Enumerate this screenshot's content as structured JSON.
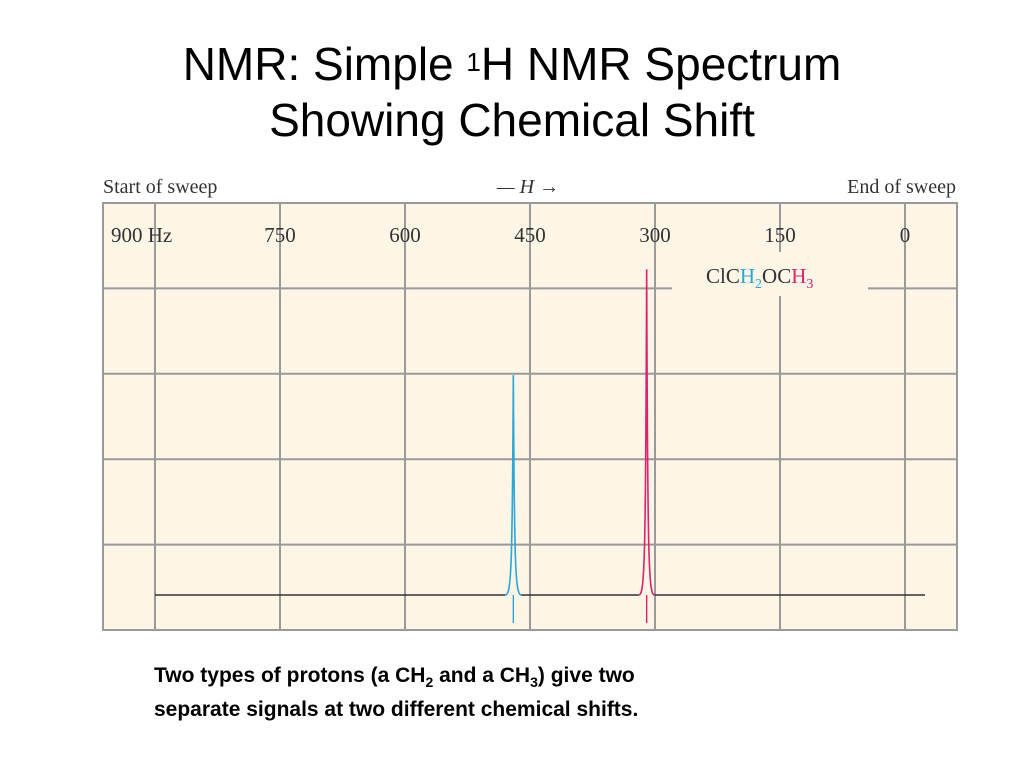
{
  "title": {
    "line1_pre": "NMR:  Simple ",
    "line1_sup": "1",
    "line1_post": "H NMR Spectrum",
    "line2": "Showing Chemical Shift"
  },
  "chart_data": {
    "type": "line",
    "header_left": "Start of sweep",
    "header_middle": "— H →",
    "header_right": "End of sweep",
    "x_unit": "Hz",
    "x_ticks": [
      900,
      750,
      600,
      450,
      300,
      150,
      0
    ],
    "x_tick_labels": [
      "900 Hz",
      "750",
      "600",
      "450",
      "300",
      "150",
      "0"
    ],
    "xlim": [
      900,
      0
    ],
    "ylim": [
      0,
      4.2
    ],
    "grid": true,
    "grid_rows": 5,
    "compound": {
      "parts": [
        {
          "text": "ClC",
          "color": "#333333",
          "sub": false
        },
        {
          "text": "H",
          "color": "#2aa6d8",
          "sub": false
        },
        {
          "text": "2",
          "color": "#2aa6d8",
          "sub": true
        },
        {
          "text": "OC",
          "color": "#333333",
          "sub": false
        },
        {
          "text": "H",
          "color": "#e0206a",
          "sub": false
        },
        {
          "text": "3",
          "color": "#e0206a",
          "sub": true
        }
      ]
    },
    "peaks": [
      {
        "name": "CH2",
        "x": 470,
        "height": 2.7,
        "color": "#2aa6d8"
      },
      {
        "name": "CH3",
        "x": 310,
        "height": 4.0,
        "color": "#e0206a"
      }
    ],
    "baseline_color": "#333333",
    "plot_background": "#fdf5e6",
    "grid_color": "#9a9a9a"
  },
  "caption": {
    "t1": "Two types of protons (a CH",
    "s1": "2",
    "t2": " and a CH",
    "s2": "3",
    "t3": ") give two",
    "t4": "separate signals at two different chemical shifts."
  }
}
